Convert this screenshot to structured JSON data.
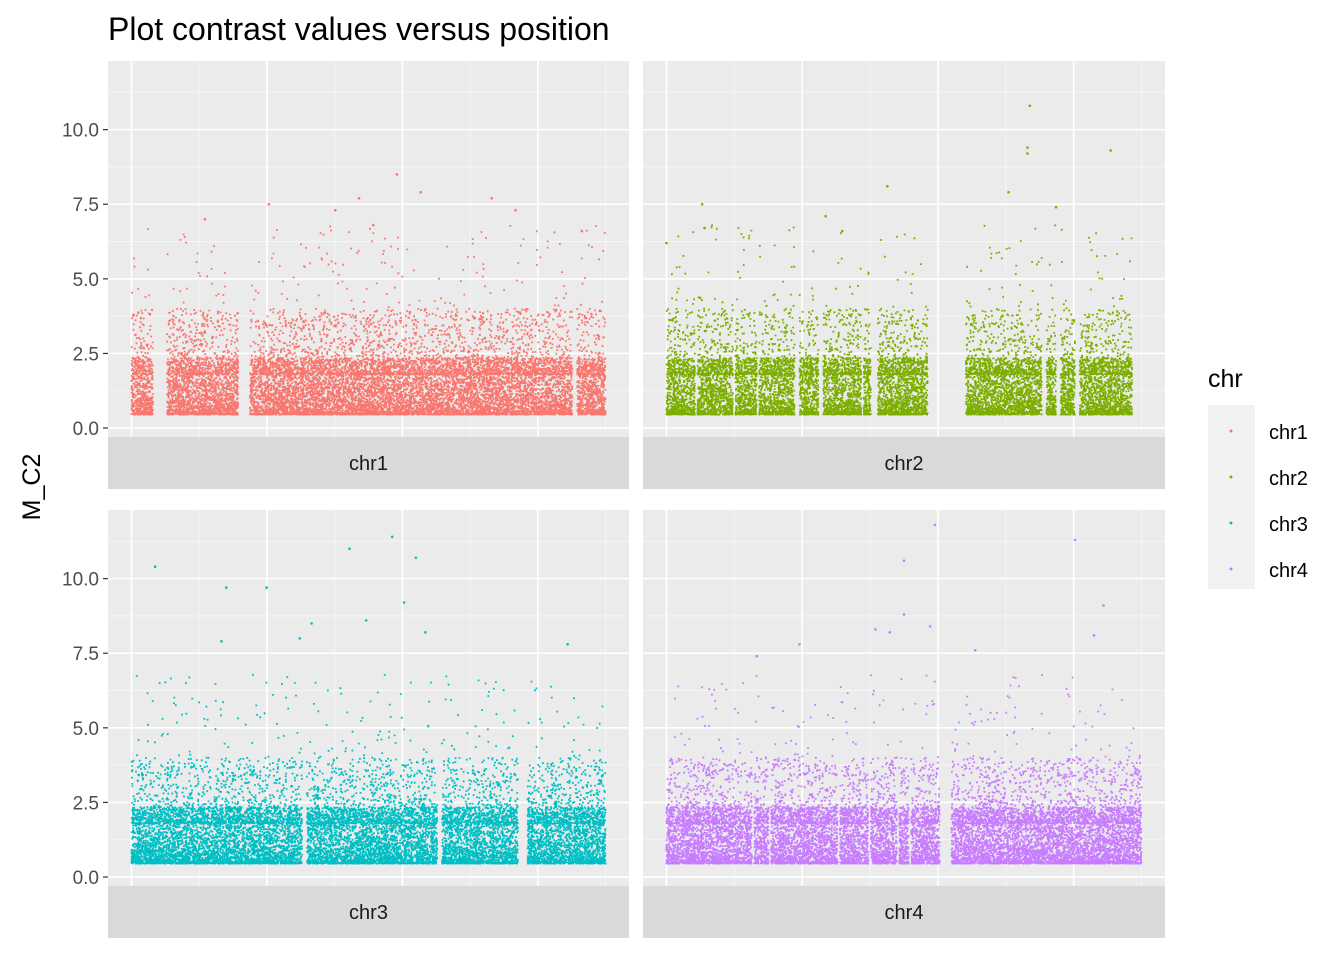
{
  "chart_data": {
    "type": "scatter",
    "title": "Plot contrast values versus position",
    "xlabel": "",
    "ylabel": "M_C2",
    "ylim": [
      -0.3,
      12.3
    ],
    "yticks": [
      "0.0",
      "2.5",
      "5.0",
      "7.5",
      "10.0"
    ],
    "ytick_values": [
      0.0,
      2.5,
      5.0,
      7.5,
      10.0
    ],
    "grid": true,
    "facet_layout": "2x2",
    "legend": {
      "title": "chr",
      "placement": "right",
      "entries": [
        {
          "label": "chr1",
          "color": "#F8766D"
        },
        {
          "label": "chr2",
          "color": "#7CAE00"
        },
        {
          "label": "chr3",
          "color": "#00BFC4"
        },
        {
          "label": "chr4",
          "color": "#C77CFF"
        }
      ]
    },
    "panels": [
      {
        "strip": "chr1",
        "color": "#F8766D",
        "segments": [
          [
            0.0,
            0.045
          ],
          [
            0.075,
            0.225
          ],
          [
            0.25,
            0.93
          ],
          [
            0.94,
            1.0
          ]
        ],
        "highlights": [
          {
            "x": 0.56,
            "y": 8.5
          },
          {
            "x": 0.61,
            "y": 7.9
          },
          {
            "x": 0.48,
            "y": 7.7
          },
          {
            "x": 0.76,
            "y": 7.7
          },
          {
            "x": 0.29,
            "y": 7.5
          },
          {
            "x": 0.43,
            "y": 7.3
          },
          {
            "x": 0.81,
            "y": 7.3
          },
          {
            "x": 0.155,
            "y": 7.0
          },
          {
            "x": 0.51,
            "y": 6.8
          },
          {
            "x": 0.95,
            "y": 6.6
          }
        ]
      },
      {
        "strip": "chr2",
        "color": "#7CAE00",
        "segments": [
          [
            0.0,
            0.06
          ],
          [
            0.065,
            0.14
          ],
          [
            0.145,
            0.19
          ],
          [
            0.195,
            0.27
          ],
          [
            0.28,
            0.32
          ],
          [
            0.33,
            0.41
          ],
          [
            0.415,
            0.43
          ],
          [
            0.445,
            0.55
          ],
          [
            0.63,
            0.79
          ],
          [
            0.8,
            0.82
          ],
          [
            0.83,
            0.86
          ],
          [
            0.87,
            0.98
          ]
        ],
        "highlights": [
          {
            "x": 0.765,
            "y": 10.8
          },
          {
            "x": 0.76,
            "y": 9.4
          },
          {
            "x": 0.76,
            "y": 9.2
          },
          {
            "x": 0.935,
            "y": 9.3
          },
          {
            "x": 0.465,
            "y": 8.1
          },
          {
            "x": 0.72,
            "y": 7.9
          },
          {
            "x": 0.075,
            "y": 7.5
          },
          {
            "x": 0.82,
            "y": 7.4
          },
          {
            "x": 0.335,
            "y": 7.1
          },
          {
            "x": 0.08,
            "y": 6.7
          },
          {
            "x": 0.37,
            "y": 6.6
          },
          {
            "x": 0.0,
            "y": 6.2
          }
        ]
      },
      {
        "strip": "chr3",
        "color": "#00BFC4",
        "segments": [
          [
            0.0,
            0.36
          ],
          [
            0.37,
            0.645
          ],
          [
            0.655,
            0.815
          ],
          [
            0.835,
            1.0
          ]
        ],
        "highlights": [
          {
            "x": 0.55,
            "y": 11.4
          },
          {
            "x": 0.46,
            "y": 11.0
          },
          {
            "x": 0.6,
            "y": 10.7
          },
          {
            "x": 0.05,
            "y": 10.4
          },
          {
            "x": 0.2,
            "y": 9.7
          },
          {
            "x": 0.285,
            "y": 9.7
          },
          {
            "x": 0.575,
            "y": 9.2
          },
          {
            "x": 0.38,
            "y": 8.5
          },
          {
            "x": 0.495,
            "y": 8.6
          },
          {
            "x": 0.355,
            "y": 8.0
          },
          {
            "x": 0.19,
            "y": 7.9
          },
          {
            "x": 0.62,
            "y": 8.2
          },
          {
            "x": 0.92,
            "y": 7.8
          }
        ]
      },
      {
        "strip": "chr4",
        "color": "#C77CFF",
        "segments": [
          [
            0.0,
            0.18
          ],
          [
            0.185,
            0.215
          ],
          [
            0.22,
            0.36
          ],
          [
            0.365,
            0.425
          ],
          [
            0.43,
            0.485
          ],
          [
            0.49,
            0.51
          ],
          [
            0.515,
            0.575
          ],
          [
            0.6,
            1.0
          ]
        ],
        "highlights": [
          {
            "x": 0.565,
            "y": 11.8
          },
          {
            "x": 0.86,
            "y": 11.3
          },
          {
            "x": 0.5,
            "y": 10.6
          },
          {
            "x": 0.92,
            "y": 9.1
          },
          {
            "x": 0.5,
            "y": 8.8
          },
          {
            "x": 0.555,
            "y": 8.4
          },
          {
            "x": 0.44,
            "y": 8.3
          },
          {
            "x": 0.47,
            "y": 8.2
          },
          {
            "x": 0.9,
            "y": 8.1
          },
          {
            "x": 0.28,
            "y": 7.8
          },
          {
            "x": 0.65,
            "y": 7.6
          },
          {
            "x": 0.19,
            "y": 7.4
          }
        ]
      }
    ]
  }
}
